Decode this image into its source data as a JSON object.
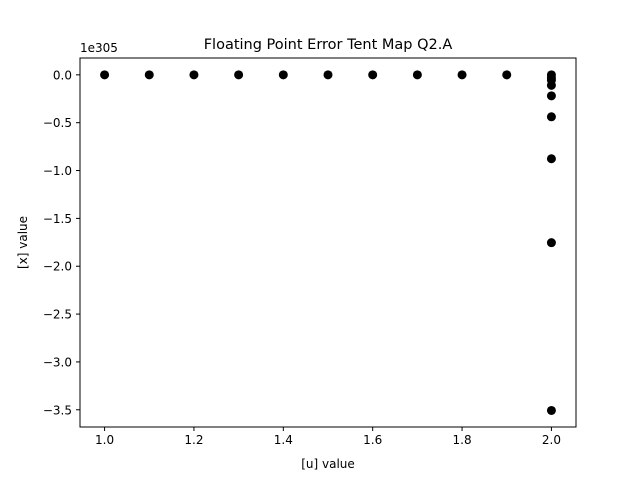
{
  "chart_data": {
    "type": "scatter",
    "title": "Floating Point Error Tent Map Q2.A",
    "xlabel": "[u] value",
    "ylabel": "[x] value",
    "y_offset_label": "1e305",
    "xlim": [
      0.945,
      2.055
    ],
    "ylim": [
      -3.68,
      0.176
    ],
    "x_ticks": [
      {
        "value": 1.0,
        "label": "1.0"
      },
      {
        "value": 1.2,
        "label": "1.2"
      },
      {
        "value": 1.4,
        "label": "1.4"
      },
      {
        "value": 1.6,
        "label": "1.6"
      },
      {
        "value": 1.8,
        "label": "1.8"
      },
      {
        "value": 2.0,
        "label": "2.0"
      }
    ],
    "y_ticks": [
      {
        "value": 0.0,
        "label": "0.0"
      },
      {
        "value": -0.5,
        "label": "−0.5"
      },
      {
        "value": -1.0,
        "label": "−1.0"
      },
      {
        "value": -1.5,
        "label": "−1.5"
      },
      {
        "value": -2.0,
        "label": "−2.0"
      },
      {
        "value": -2.5,
        "label": "−2.5"
      },
      {
        "value": -3.0,
        "label": "−3.0"
      },
      {
        "value": -3.5,
        "label": "−3.5"
      }
    ],
    "marker_color": "#000000",
    "grid": false,
    "points": [
      {
        "x": 1.0,
        "y": 0.0
      },
      {
        "x": 1.1,
        "y": 0.0
      },
      {
        "x": 1.2,
        "y": 0.0
      },
      {
        "x": 1.3,
        "y": 0.0
      },
      {
        "x": 1.4,
        "y": 0.0
      },
      {
        "x": 1.5,
        "y": 0.0
      },
      {
        "x": 1.6,
        "y": 0.0
      },
      {
        "x": 1.7,
        "y": 0.0
      },
      {
        "x": 1.8,
        "y": 0.0
      },
      {
        "x": 1.9,
        "y": 0.0
      },
      {
        "x": 2.0,
        "y": 0.0
      },
      {
        "x": 2.0,
        "y": -0.0274
      },
      {
        "x": 2.0,
        "y": -0.0548
      },
      {
        "x": 2.0,
        "y": -0.1096
      },
      {
        "x": 2.0,
        "y": -0.2192
      },
      {
        "x": 2.0,
        "y": -0.4384
      },
      {
        "x": 2.0,
        "y": -0.8768
      },
      {
        "x": 2.0,
        "y": -1.7536
      },
      {
        "x": 2.0,
        "y": -3.5072
      }
    ]
  }
}
